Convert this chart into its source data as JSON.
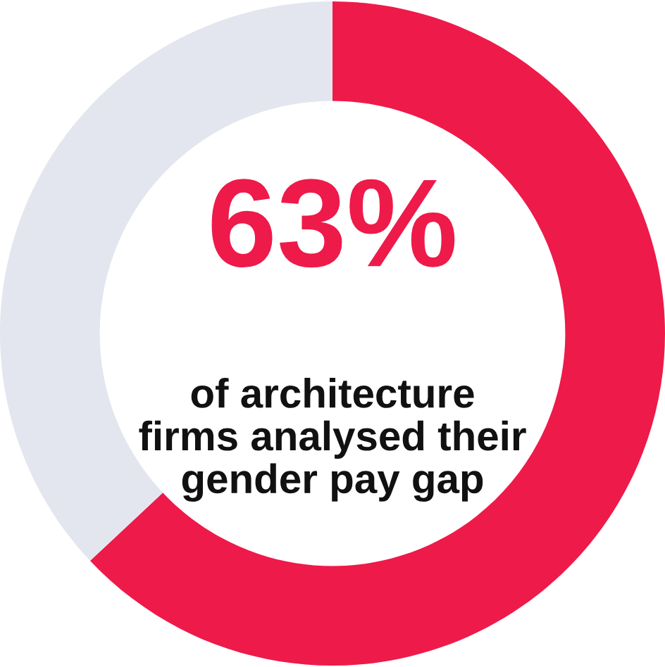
{
  "chart_data": {
    "type": "donut",
    "categories": [
      null,
      null
    ],
    "values": [
      63,
      37
    ],
    "colors": [
      "#ee1a4a",
      "#e3e6ee"
    ],
    "value_labels": [
      "63%",
      null
    ],
    "annotations": [
      "of architecture firms analysed their gender pay gap"
    ]
  }
}
